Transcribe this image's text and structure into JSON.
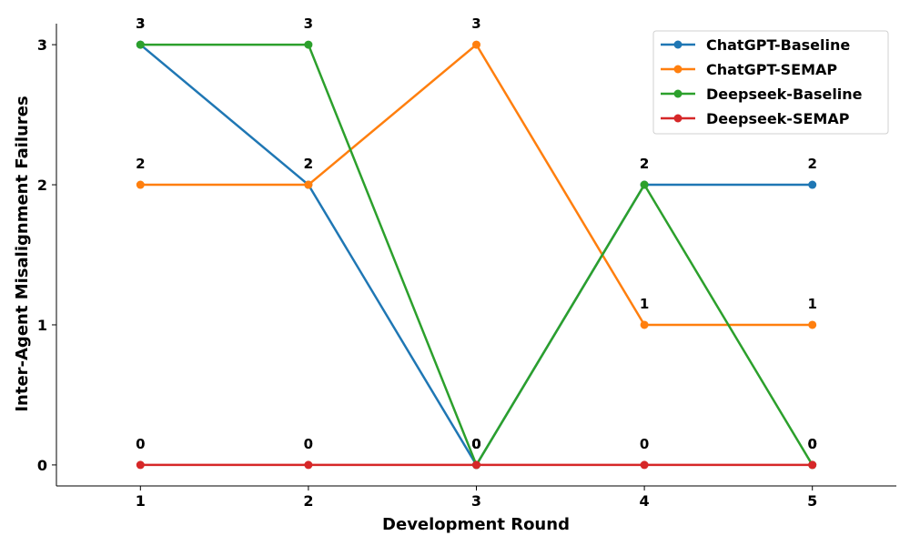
{
  "chart_data": {
    "type": "line",
    "title": "",
    "xlabel": "Development Round",
    "ylabel": "Inter-Agent Misalignment Failures",
    "x": [
      1,
      2,
      3,
      4,
      5
    ],
    "x_ticks": [
      "1",
      "2",
      "3",
      "4",
      "5"
    ],
    "y_ticks": [
      "0",
      "1",
      "2",
      "3"
    ],
    "xlim": [
      0.5,
      5.5
    ],
    "ylim": [
      -0.15,
      3.15
    ],
    "grid": false,
    "legend_position": "top-right",
    "series": [
      {
        "name": "ChatGPT-Baseline",
        "color": "#1f77b4",
        "values": [
          3,
          2,
          0,
          2,
          2
        ],
        "labels": [
          "3",
          "2",
          "0",
          "2",
          "2"
        ]
      },
      {
        "name": "ChatGPT-SEMAP",
        "color": "#ff7f0e",
        "values": [
          2,
          2,
          3,
          1,
          1
        ],
        "labels": [
          "2",
          "2",
          "3",
          "1",
          "1"
        ]
      },
      {
        "name": "Deepseek-Baseline",
        "color": "#2ca02c",
        "values": [
          3,
          3,
          0,
          2,
          0
        ],
        "labels": [
          "3",
          "3",
          "0",
          "2",
          "0"
        ]
      },
      {
        "name": "Deepseek-SEMAP",
        "color": "#d62728",
        "values": [
          0,
          0,
          0,
          0,
          0
        ],
        "labels": [
          "0",
          "0",
          "0",
          "0",
          "0"
        ]
      }
    ]
  }
}
